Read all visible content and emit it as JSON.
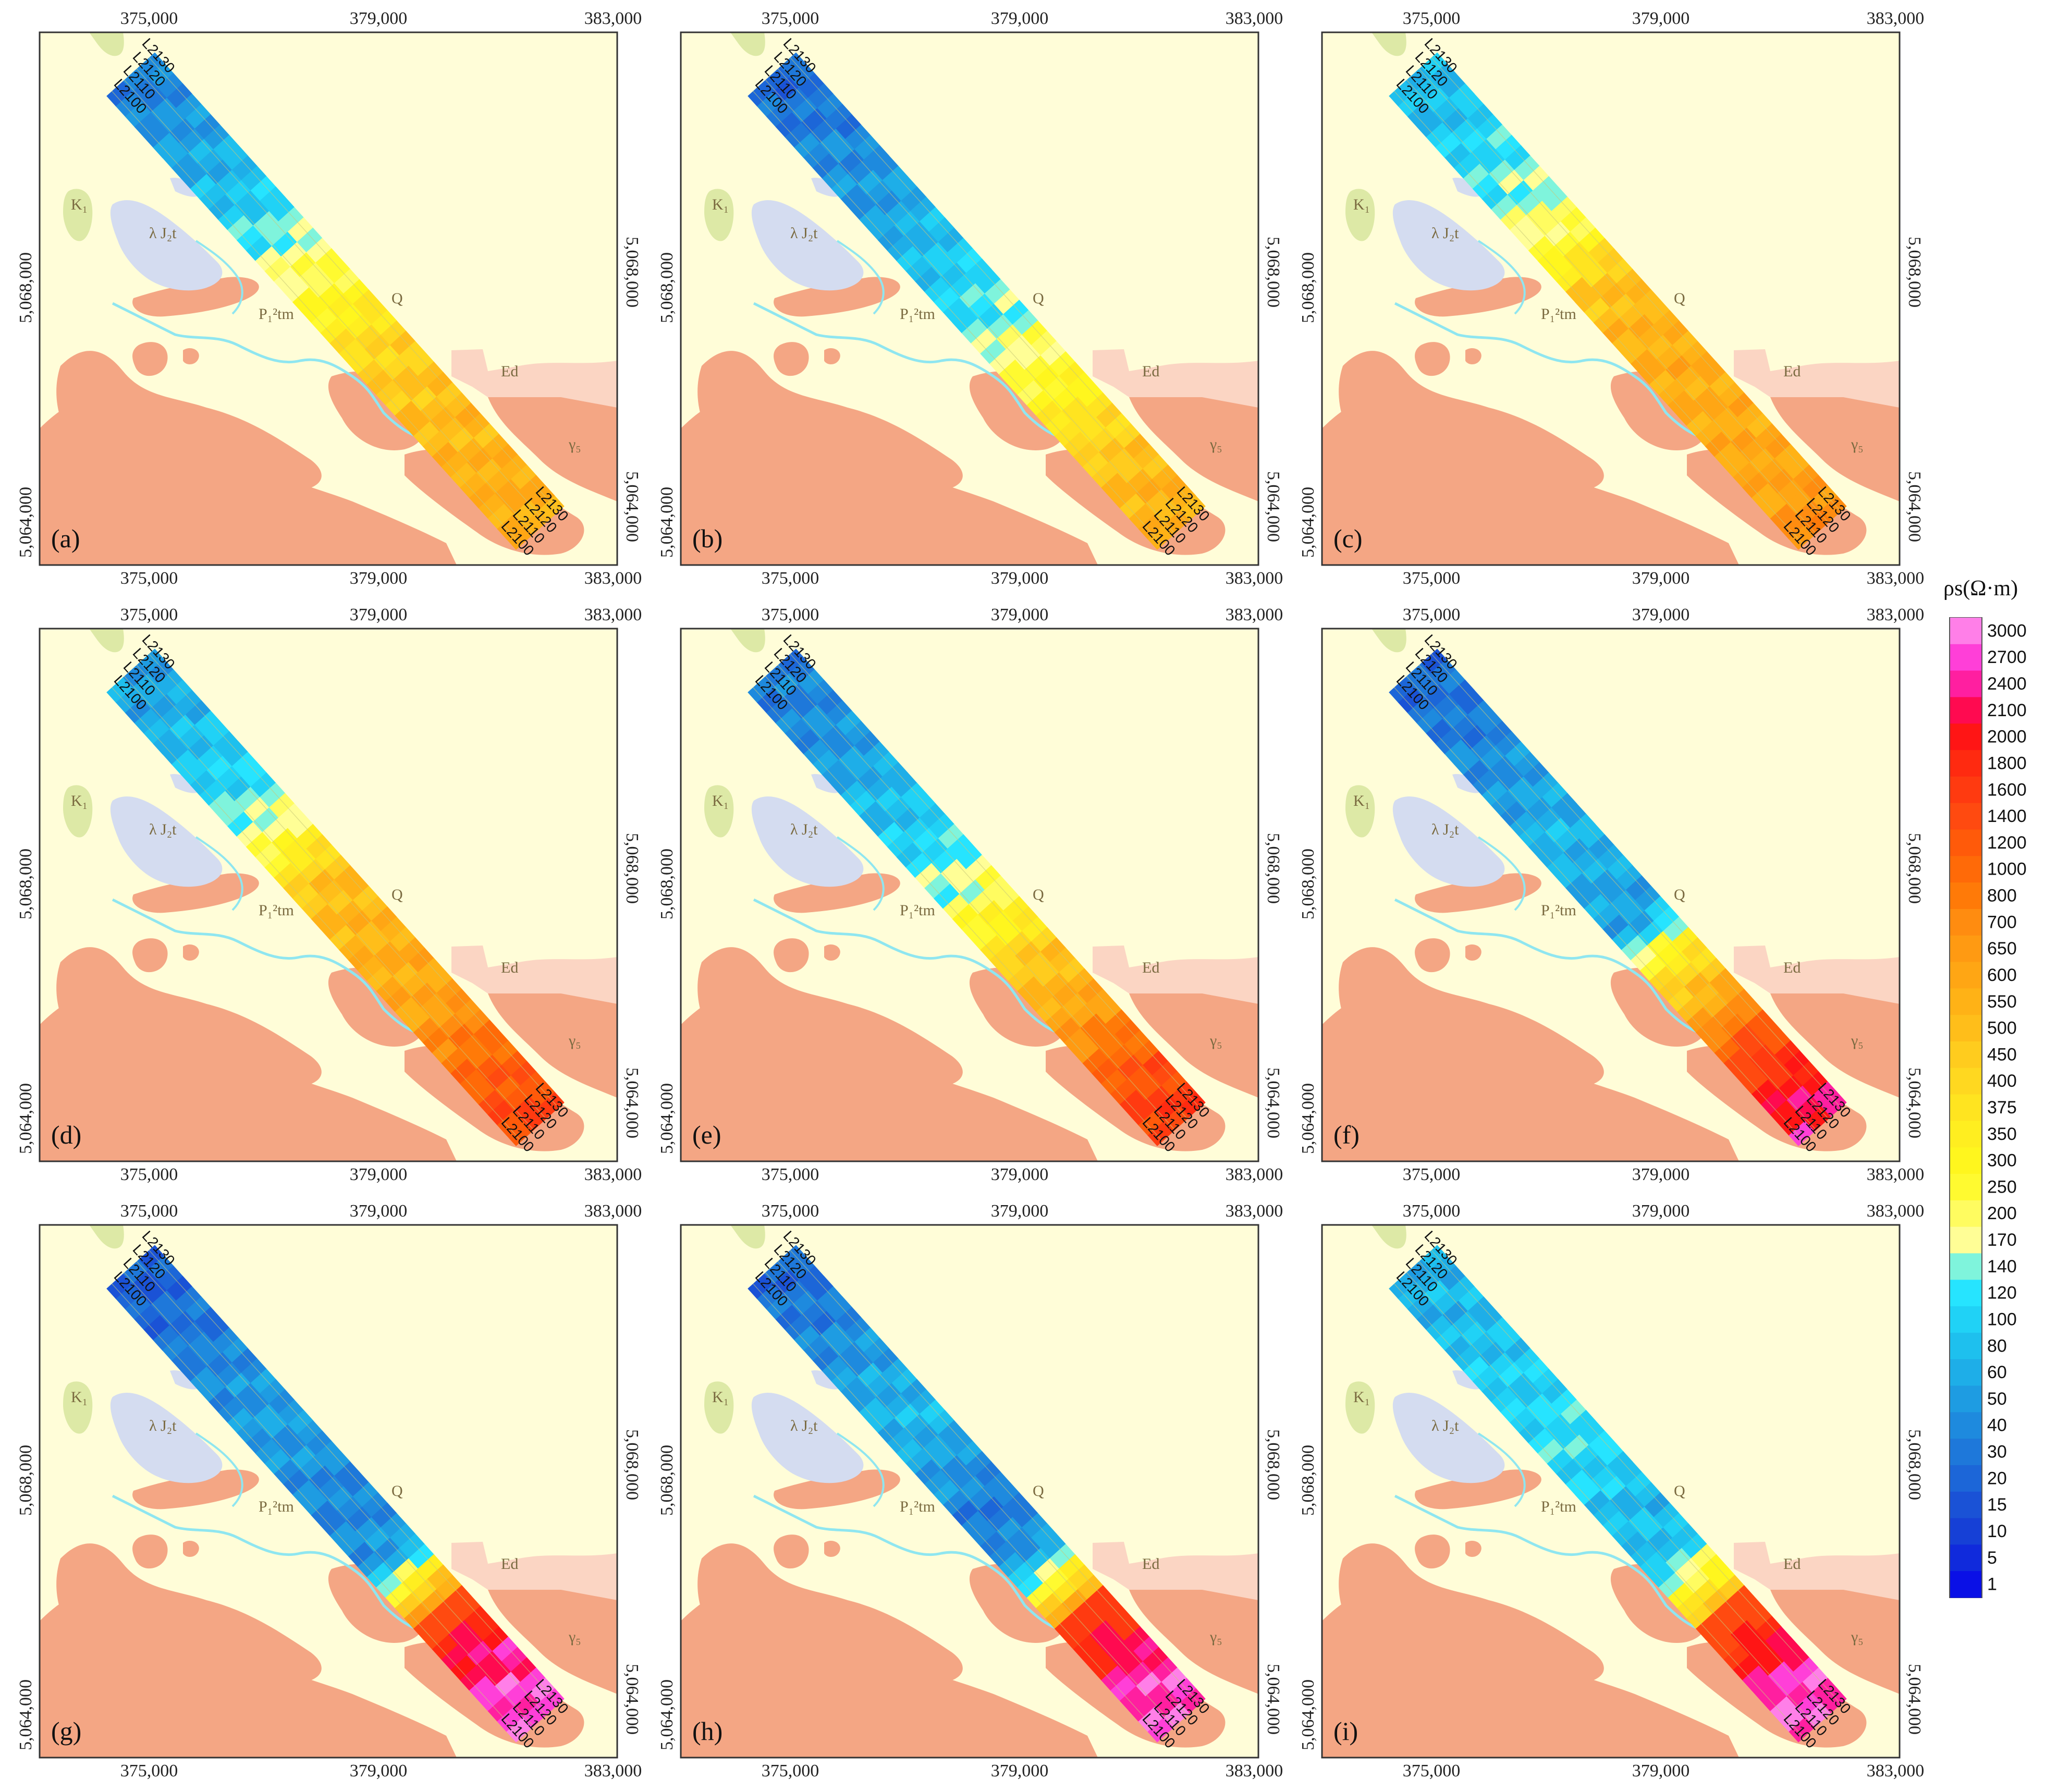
{
  "figure": {
    "top_ticks": [
      "375,000",
      "379,000",
      "383,000"
    ],
    "bottom_ticks": [
      "375,000",
      "379,000",
      "383,000"
    ],
    "left_ticks": [
      "5,068,000",
      "5,064,000"
    ],
    "right_ticks": [
      "5,068,000",
      "5,064,000"
    ],
    "map_labels": {
      "k1": "K₁",
      "j2t": "λ J₂t",
      "p1tm": "P₁²tm",
      "q": "Q",
      "ed": "Ed",
      "g5": "γ₅"
    },
    "line_labels_top": [
      "L2130",
      "L2120",
      "L2110",
      "L2100"
    ],
    "line_labels_bottom": [
      "L2130",
      "L2120",
      "L2110",
      "L2100"
    ]
  },
  "panels": [
    {
      "letter": "(a)",
      "ramp": [
        0.15,
        0.18,
        0.22,
        0.26,
        0.33,
        0.4,
        0.48,
        0.55,
        0.58,
        0.6,
        0.62,
        0.62
      ],
      "hot": [
        0.5,
        0.52
      ]
    },
    {
      "letter": "(b)",
      "ramp": [
        0.12,
        0.14,
        0.17,
        0.2,
        0.24,
        0.28,
        0.33,
        0.4,
        0.46,
        0.55,
        0.6,
        0.62
      ],
      "hot": [
        0.5,
        0.52
      ]
    },
    {
      "letter": "(c)",
      "ramp": [
        0.24,
        0.26,
        0.3,
        0.34,
        0.4,
        0.56,
        0.6,
        0.62,
        0.62,
        0.63,
        0.64,
        0.7
      ],
      "hot": [
        0.55,
        0.6
      ]
    },
    {
      "letter": "(d)",
      "ramp": [
        0.2,
        0.22,
        0.26,
        0.3,
        0.38,
        0.56,
        0.6,
        0.62,
        0.64,
        0.72,
        0.78,
        0.82
      ],
      "hot": [
        0.6,
        0.7
      ]
    },
    {
      "letter": "(e)",
      "ramp": [
        0.14,
        0.16,
        0.2,
        0.24,
        0.28,
        0.34,
        0.44,
        0.56,
        0.62,
        0.72,
        0.8,
        0.84
      ],
      "hot": [
        0.62,
        0.72
      ]
    },
    {
      "letter": "(f)",
      "ramp": [
        0.12,
        0.14,
        0.17,
        0.2,
        0.24,
        0.22,
        0.2,
        0.48,
        0.62,
        0.76,
        0.88,
        0.94
      ],
      "hot": [
        0.7,
        0.8
      ]
    },
    {
      "letter": "(g)",
      "ramp": [
        0.1,
        0.12,
        0.15,
        0.18,
        0.2,
        0.18,
        0.16,
        0.2,
        0.6,
        0.88,
        0.96,
        0.98
      ],
      "hot": [
        0.8,
        0.92
      ]
    },
    {
      "letter": "(h)",
      "ramp": [
        0.12,
        0.14,
        0.18,
        0.22,
        0.24,
        0.18,
        0.14,
        0.2,
        0.58,
        0.86,
        0.96,
        0.98
      ],
      "hot": [
        0.82,
        0.92
      ]
    },
    {
      "letter": "(i)",
      "ramp": [
        0.22,
        0.24,
        0.26,
        0.28,
        0.3,
        0.28,
        0.24,
        0.26,
        0.52,
        0.84,
        0.96,
        0.98
      ],
      "hot": [
        0.8,
        0.9
      ]
    }
  ],
  "legend": {
    "title": "ρs(Ω·m)",
    "ticks": [
      "3000",
      "2700",
      "2400",
      "2100",
      "2000",
      "1800",
      "1600",
      "1400",
      "1200",
      "1000",
      "800",
      "700",
      "650",
      "600",
      "550",
      "500",
      "450",
      "400",
      "375",
      "350",
      "300",
      "250",
      "200",
      "170",
      "140",
      "120",
      "100",
      "80",
      "60",
      "50",
      "40",
      "30",
      "20",
      "15",
      "10",
      "5",
      "1"
    ],
    "colors": [
      "#ff7fe8",
      "#ff3fd8",
      "#ff1fa0",
      "#ff0a50",
      "#ff1515",
      "#ff2a10",
      "#ff3a10",
      "#ff4a10",
      "#ff5a0a",
      "#ff6a08",
      "#ff7a08",
      "#ff8c10",
      "#ff9a12",
      "#ffa614",
      "#ffb216",
      "#ffbe1a",
      "#ffcc1e",
      "#ffd820",
      "#ffe420",
      "#ffee20",
      "#fff61e",
      "#fffa30",
      "#fffc60",
      "#fffe96",
      "#7ff4dc",
      "#26e4ff",
      "#20d2f6",
      "#1ec0ee",
      "#1eaee8",
      "#1e9ce2",
      "#1e8ade",
      "#1e78da",
      "#1c66d8",
      "#1a52d6",
      "#1640d6",
      "#102adc",
      "#0a10e6"
    ]
  }
}
